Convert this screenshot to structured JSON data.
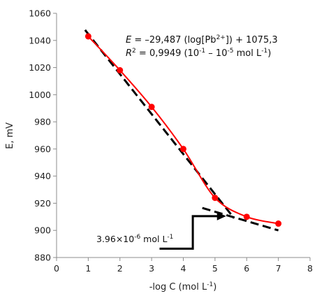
{
  "chart_data": {
    "type": "line",
    "xlabel": "-log C (mol L",
    "xlabel_sup": "-1",
    "xlabel_end": ")",
    "ylabel": "E, mV",
    "xlim": [
      0,
      8
    ],
    "ylim": [
      880,
      1060
    ],
    "x_ticks": [
      0,
      1,
      2,
      3,
      4,
      5,
      6,
      7,
      8
    ],
    "y_ticks": [
      880,
      900,
      920,
      940,
      960,
      980,
      1000,
      1020,
      1040,
      1060
    ],
    "grid": false,
    "legend": "none",
    "series": [
      {
        "x": [
          1,
          2,
          3,
          4,
          5,
          6,
          7
        ],
        "y": [
          1043,
          1018,
          991,
          960,
          924,
          910,
          905
        ],
        "color": "#ff0000",
        "marker": "circle",
        "smooth": true
      }
    ],
    "fit_lines": [
      {
        "style": "dashed",
        "color": "#000000",
        "from": [
          0.9,
          1047.7
        ],
        "to": [
          5.6,
          909.0
        ]
      },
      {
        "style": "dashed",
        "color": "#000000",
        "from": [
          4.6,
          916.5
        ],
        "to": [
          7.0,
          900.0
        ]
      }
    ],
    "equation": {
      "line1": {
        "italic": "E",
        "pre": " = –29,487 (log[Pb",
        "sup": "2+",
        "post": "]) + 1075,3"
      },
      "line2": {
        "italic": "R",
        "sup1": "2",
        "mid": " = 0,9949 (10",
        "sup2": "-1",
        "mid2": " – 10",
        "sup3": "-5",
        "tail": " mol L",
        "sup4": "-1",
        "end": ")"
      }
    },
    "annotation": {
      "text": "3.96×10",
      "sup": "-6",
      "unit": " mol L",
      "unit_sup": "-1",
      "arrow_target_x": 5.35,
      "arrow_target_y": 910.5
    },
    "colors": {
      "data": "#ff0000",
      "fit": "#000000",
      "axis": "#8c8c8c"
    }
  }
}
